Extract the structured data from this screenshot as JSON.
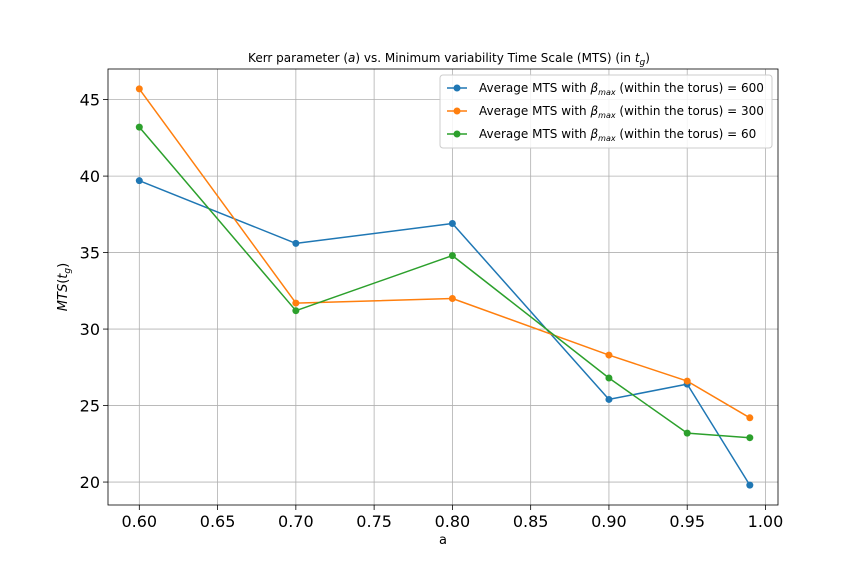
{
  "chart_data": {
    "type": "line",
    "title_parts": {
      "t1": "Kerr parameter (",
      "t2": "a",
      "t3": ") vs. Minimum variability Time Scale (MTS) (in ",
      "t4": "t",
      "t5": "g",
      "t6": ")"
    },
    "xlabel": "a",
    "ylabel_parts": {
      "y1": "MTS",
      "y2": "(",
      "y3": "t",
      "y4": "g",
      "y5": ")"
    },
    "x": [
      0.6,
      0.7,
      0.8,
      0.9,
      0.95,
      0.99
    ],
    "xlim": [
      0.58,
      1.008
    ],
    "ylim": [
      18.5,
      47.0
    ],
    "xticks": [
      0.6,
      0.65,
      0.7,
      0.75,
      0.8,
      0.85,
      0.9,
      0.95,
      1.0
    ],
    "xtick_labels": [
      "0.60",
      "0.65",
      "0.70",
      "0.75",
      "0.80",
      "0.85",
      "0.90",
      "0.95",
      "1.00"
    ],
    "yticks": [
      20,
      25,
      30,
      35,
      40,
      45
    ],
    "ytick_labels": [
      "20",
      "25",
      "30",
      "35",
      "40",
      "45"
    ],
    "grid": true,
    "legend_position": "top-right",
    "series": [
      {
        "legend_parts": {
          "a": "Average MTS with ",
          "b": "β",
          "c": "max",
          "d": " (within the torus) = 600"
        },
        "color": "#1f77b4",
        "values": [
          39.7,
          35.6,
          36.9,
          25.4,
          26.4,
          19.8
        ]
      },
      {
        "legend_parts": {
          "a": "Average MTS with ",
          "b": "β",
          "c": "max",
          "d": " (within the torus) = 300"
        },
        "color": "#ff7f0e",
        "values": [
          45.7,
          31.7,
          32.0,
          28.3,
          26.6,
          24.2
        ]
      },
      {
        "legend_parts": {
          "a": "Average MTS with ",
          "b": "β",
          "c": "max",
          "d": " (within the torus) = 60"
        },
        "color": "#2ca02c",
        "values": [
          43.2,
          31.2,
          34.8,
          26.8,
          23.2,
          22.9
        ]
      }
    ]
  }
}
